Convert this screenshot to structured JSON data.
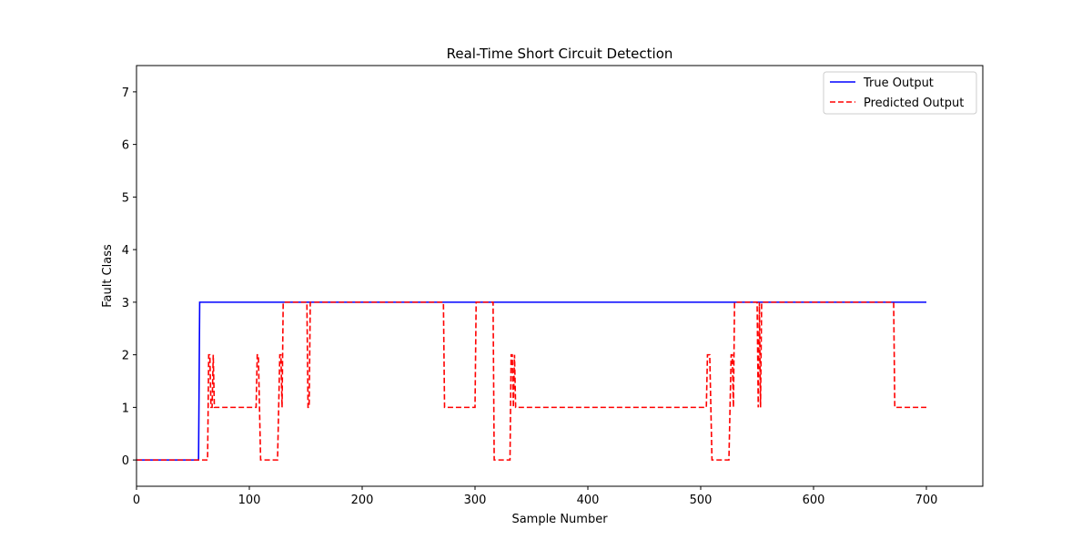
{
  "chart_data": {
    "type": "line",
    "title": "Real-Time Short Circuit Detection",
    "xlabel": "Sample Number",
    "ylabel": "Fault Class",
    "xlim": [
      0,
      750
    ],
    "ylim": [
      -0.5,
      7.5
    ],
    "xticks": [
      0,
      100,
      200,
      300,
      400,
      500,
      600,
      700
    ],
    "yticks": [
      0,
      1,
      2,
      3,
      4,
      5,
      6,
      7
    ],
    "grid": false,
    "legend_position": "upper-right",
    "series": [
      {
        "name": "True Output",
        "color": "#0000ff",
        "style": "solid",
        "points": [
          [
            0,
            0
          ],
          [
            55,
            0
          ],
          [
            56,
            3
          ],
          [
            700,
            3
          ]
        ]
      },
      {
        "name": "Predicted Output",
        "color": "#ff0000",
        "style": "dashed",
        "points": [
          [
            0,
            0
          ],
          [
            63,
            0
          ],
          [
            64,
            2
          ],
          [
            65,
            2
          ],
          [
            66,
            1
          ],
          [
            67,
            1
          ],
          [
            68,
            2
          ],
          [
            69,
            1
          ],
          [
            106,
            1
          ],
          [
            107,
            2
          ],
          [
            108,
            2
          ],
          [
            109,
            1
          ],
          [
            110,
            0
          ],
          [
            125,
            0
          ],
          [
            126,
            1
          ],
          [
            127,
            2
          ],
          [
            128,
            2
          ],
          [
            129,
            1
          ],
          [
            130,
            3
          ],
          [
            151,
            3
          ],
          [
            152,
            1
          ],
          [
            153,
            1
          ],
          [
            154,
            3
          ],
          [
            272,
            3
          ],
          [
            273,
            1
          ],
          [
            300,
            1
          ],
          [
            301,
            3
          ],
          [
            316,
            3
          ],
          [
            317,
            0
          ],
          [
            331,
            0
          ],
          [
            332,
            2
          ],
          [
            333,
            2
          ],
          [
            334,
            1
          ],
          [
            335,
            2
          ],
          [
            336,
            1
          ],
          [
            505,
            1
          ],
          [
            506,
            2
          ],
          [
            508,
            2
          ],
          [
            509,
            1
          ],
          [
            510,
            0
          ],
          [
            525,
            0
          ],
          [
            526,
            1
          ],
          [
            527,
            2
          ],
          [
            528,
            2
          ],
          [
            529,
            1
          ],
          [
            530,
            3
          ],
          [
            550,
            3
          ],
          [
            551,
            1
          ],
          [
            552,
            3
          ],
          [
            553,
            1
          ],
          [
            554,
            3
          ],
          [
            671,
            3
          ],
          [
            672,
            1
          ],
          [
            700,
            1
          ]
        ]
      }
    ]
  }
}
